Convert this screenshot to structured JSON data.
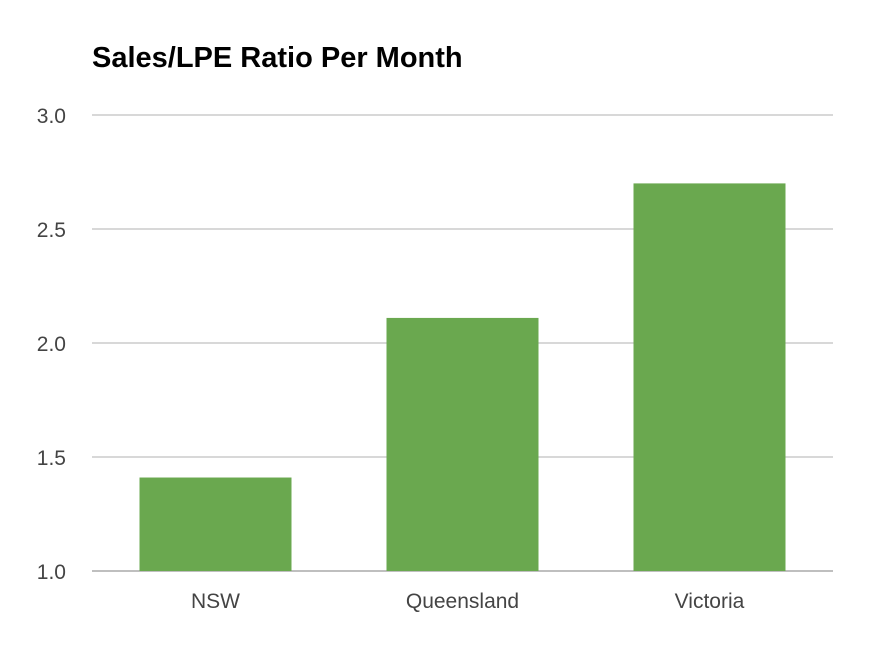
{
  "chart_data": {
    "type": "bar",
    "title": "Sales/LPE Ratio Per Month",
    "xlabel": "",
    "ylabel": "",
    "categories": [
      "NSW",
      "Queensland",
      "Victoria"
    ],
    "values": [
      1.41,
      2.11,
      2.7
    ],
    "ylim": [
      1.0,
      3.0
    ],
    "yticks": [
      "1.0",
      "1.5",
      "2.0",
      "2.5",
      "3.0"
    ],
    "ytick_values": [
      1.0,
      1.5,
      2.0,
      2.5,
      3.0
    ],
    "grid": true,
    "legend": "none",
    "bar_color": "#6aa84f",
    "grid_color": "#cccccc"
  }
}
